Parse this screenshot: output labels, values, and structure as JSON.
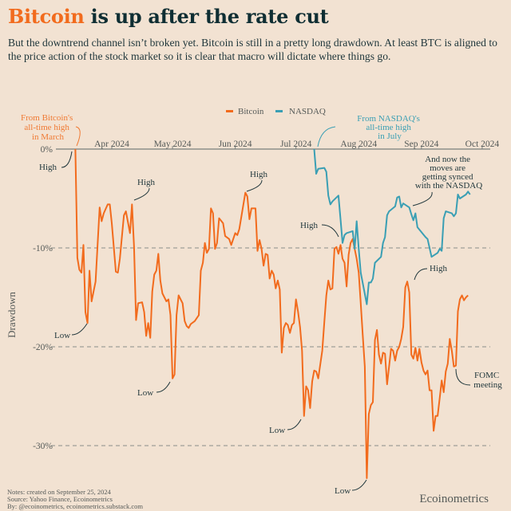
{
  "header": {
    "title_accent": "Bitcoin",
    "title_rest": " is up after the rate cut",
    "subtitle": "But the downtrend channel isn’t broken yet. Bitcoin is still in a pretty long drawdown. At least BTC is aligned to the price action of the stock market so it is clear that macro will dictate where things go."
  },
  "footer": {
    "notes": "Notes: created on September 25, 2024",
    "source": "Source: Yahoo Finance, Ecoinometrics",
    "by": "By: @ecoinometrics, ecoinometrics.substack.com",
    "brand": "Ecoinometrics"
  },
  "colors": {
    "background": "#f2e2d2",
    "bitcoin": "#f26b1d",
    "nasdaq": "#3a9fb4",
    "title": "#0f2e33"
  },
  "annotations": {
    "btc_ath": [
      "From Bitcoin's",
      "all-time high",
      "in March"
    ],
    "nasdaq_ath": [
      "From NASDAQ's",
      "all-time high",
      "in July"
    ],
    "synced": [
      "And now the",
      "moves are",
      "getting synced",
      "with the NASDAQ"
    ],
    "fomc": [
      "FOMC",
      "meeting"
    ],
    "high": "High",
    "low": "Low"
  },
  "chart_data": {
    "type": "line",
    "title": "",
    "xlabel": "",
    "ylabel": "Drawdown",
    "ylim": [
      -34,
      0
    ],
    "y_ticks": [
      {
        "value": 0,
        "label": "0%"
      },
      {
        "value": -10,
        "label": "-10%"
      },
      {
        "value": -20,
        "label": "-20%"
      },
      {
        "value": -30,
        "label": "-30%"
      }
    ],
    "x_ticks": [
      {
        "date": "2024-04-01",
        "label": "Apr 2024"
      },
      {
        "date": "2024-05-01",
        "label": "May 2024"
      },
      {
        "date": "2024-06-01",
        "label": "Jun 2024"
      },
      {
        "date": "2024-07-01",
        "label": "Jul 2024"
      },
      {
        "date": "2024-08-01",
        "label": "Aug 2024"
      },
      {
        "date": "2024-09-01",
        "label": "Sep 2024"
      },
      {
        "date": "2024-10-01",
        "label": "Oct 2024"
      }
    ],
    "grid": "dashed horizontal lines at -10%, -20%, -30%",
    "legend": "top-center",
    "series": [
      {
        "name": "Bitcoin",
        "color": "#f26b1d",
        "points": [
          [
            "2024-03-14",
            0.0
          ],
          [
            "2024-03-15",
            -11.0
          ],
          [
            "2024-03-16",
            -12.2
          ],
          [
            "2024-03-17",
            -12.5
          ],
          [
            "2024-03-18",
            -9.7
          ],
          [
            "2024-03-19",
            -16.5
          ],
          [
            "2024-03-20",
            -17.6
          ],
          [
            "2024-03-21",
            -12.3
          ],
          [
            "2024-03-22",
            -15.4
          ],
          [
            "2024-03-24",
            -13.4
          ],
          [
            "2024-03-26",
            -5.9
          ],
          [
            "2024-03-27",
            -7.3
          ],
          [
            "2024-03-28",
            -6.5
          ],
          [
            "2024-03-30",
            -5.6
          ],
          [
            "2024-03-31",
            -5.6
          ],
          [
            "2024-04-01",
            -7.5
          ],
          [
            "2024-04-03",
            -12.4
          ],
          [
            "2024-04-04",
            -12.5
          ],
          [
            "2024-04-05",
            -11.1
          ],
          [
            "2024-04-07",
            -6.7
          ],
          [
            "2024-04-08",
            -6.3
          ],
          [
            "2024-04-10",
            -8.5
          ],
          [
            "2024-04-11",
            -5.6
          ],
          [
            "2024-04-12",
            -9.9
          ],
          [
            "2024-04-13",
            -17.3
          ],
          [
            "2024-04-14",
            -15.6
          ],
          [
            "2024-04-16",
            -15.5
          ],
          [
            "2024-04-17",
            -16.5
          ],
          [
            "2024-04-18",
            -18.9
          ],
          [
            "2024-04-19",
            -17.6
          ],
          [
            "2024-04-20",
            -19.1
          ],
          [
            "2024-04-21",
            -14.4
          ],
          [
            "2024-04-22",
            -12.7
          ],
          [
            "2024-04-23",
            -12.3
          ],
          [
            "2024-04-24",
            -10.6
          ],
          [
            "2024-04-25",
            -13.3
          ],
          [
            "2024-04-26",
            -14.6
          ],
          [
            "2024-04-27",
            -15.0
          ],
          [
            "2024-04-28",
            -15.4
          ],
          [
            "2024-04-29",
            -15.2
          ],
          [
            "2024-04-30",
            -16.8
          ],
          [
            "2024-05-01",
            -23.2
          ],
          [
            "2024-05-02",
            -22.8
          ],
          [
            "2024-05-03",
            -16.8
          ],
          [
            "2024-05-04",
            -14.8
          ],
          [
            "2024-05-06",
            -15.6
          ],
          [
            "2024-05-07",
            -17.4
          ],
          [
            "2024-05-08",
            -17.9
          ],
          [
            "2024-05-09",
            -18.1
          ],
          [
            "2024-05-10",
            -17.7
          ],
          [
            "2024-05-12",
            -17.4
          ],
          [
            "2024-05-14",
            -16.8
          ],
          [
            "2024-05-15",
            -12.3
          ],
          [
            "2024-05-16",
            -11.5
          ],
          [
            "2024-05-17",
            -9.5
          ],
          [
            "2024-05-18",
            -10.5
          ],
          [
            "2024-05-19",
            -10.1
          ],
          [
            "2024-05-20",
            -6.0
          ],
          [
            "2024-05-21",
            -6.5
          ],
          [
            "2024-05-22",
            -10.1
          ],
          [
            "2024-05-23",
            -9.5
          ],
          [
            "2024-05-24",
            -7.0
          ],
          [
            "2024-05-26",
            -7.5
          ],
          [
            "2024-05-27",
            -8.8
          ],
          [
            "2024-05-29",
            -9.1
          ],
          [
            "2024-05-30",
            -9.7
          ],
          [
            "2024-06-01",
            -8.5
          ],
          [
            "2024-06-02",
            -8.7
          ],
          [
            "2024-06-03",
            -8.1
          ],
          [
            "2024-06-06",
            -4.4
          ],
          [
            "2024-06-07",
            -4.8
          ],
          [
            "2024-06-08",
            -7.1
          ],
          [
            "2024-06-09",
            -6.0
          ],
          [
            "2024-06-11",
            -6.0
          ],
          [
            "2024-06-12",
            -10.3
          ],
          [
            "2024-06-13",
            -9.2
          ],
          [
            "2024-06-14",
            -10.1
          ],
          [
            "2024-06-15",
            -11.8
          ],
          [
            "2024-06-16",
            -10.6
          ],
          [
            "2024-06-17",
            -10.7
          ],
          [
            "2024-06-18",
            -13.1
          ],
          [
            "2024-06-19",
            -12.3
          ],
          [
            "2024-06-20",
            -12.7
          ],
          [
            "2024-06-21",
            -14.1
          ],
          [
            "2024-06-22",
            -13.3
          ],
          [
            "2024-06-23",
            -14.2
          ],
          [
            "2024-06-24",
            -20.6
          ],
          [
            "2024-06-25",
            -18.1
          ],
          [
            "2024-06-26",
            -17.6
          ],
          [
            "2024-06-27",
            -17.8
          ],
          [
            "2024-06-28",
            -18.6
          ],
          [
            "2024-06-29",
            -17.8
          ],
          [
            "2024-06-30",
            -17.6
          ],
          [
            "2024-07-01",
            -15.2
          ],
          [
            "2024-07-02",
            -16.4
          ],
          [
            "2024-07-03",
            -18.0
          ],
          [
            "2024-07-04",
            -20.4
          ],
          [
            "2024-07-05",
            -27.0
          ],
          [
            "2024-07-06",
            -24.0
          ],
          [
            "2024-07-07",
            -24.4
          ],
          [
            "2024-07-08",
            -26.2
          ],
          [
            "2024-07-09",
            -23.5
          ],
          [
            "2024-07-10",
            -22.4
          ],
          [
            "2024-07-11",
            -22.5
          ],
          [
            "2024-07-12",
            -23.2
          ],
          [
            "2024-07-14",
            -20.4
          ],
          [
            "2024-07-15",
            -17.5
          ],
          [
            "2024-07-16",
            -14.8
          ],
          [
            "2024-07-17",
            -13.3
          ],
          [
            "2024-07-18",
            -14.2
          ],
          [
            "2024-07-19",
            -14.1
          ],
          [
            "2024-07-20",
            -10.1
          ],
          [
            "2024-07-21",
            -9.9
          ],
          [
            "2024-07-22",
            -10.6
          ],
          [
            "2024-07-23",
            -9.7
          ],
          [
            "2024-07-24",
            -11.1
          ],
          [
            "2024-07-25",
            -11.5
          ],
          [
            "2024-07-26",
            -13.9
          ],
          [
            "2024-07-27",
            -10.7
          ],
          [
            "2024-07-28",
            -9.5
          ],
          [
            "2024-07-29",
            -9.1
          ],
          [
            "2024-07-31",
            -11.1
          ],
          [
            "2024-08-01",
            -12.5
          ],
          [
            "2024-08-02",
            -15.6
          ],
          [
            "2024-08-03",
            -18.8
          ],
          [
            "2024-08-04",
            -22.0
          ],
          [
            "2024-08-05",
            -33.3
          ],
          [
            "2024-08-06",
            -26.8
          ],
          [
            "2024-08-07",
            -25.9
          ],
          [
            "2024-08-08",
            -25.6
          ],
          [
            "2024-08-09",
            -19.3
          ],
          [
            "2024-08-10",
            -18.3
          ],
          [
            "2024-08-11",
            -20.8
          ],
          [
            "2024-08-12",
            -21.7
          ],
          [
            "2024-08-13",
            -20.6
          ],
          [
            "2024-08-14",
            -20.7
          ],
          [
            "2024-08-15",
            -23.8
          ],
          [
            "2024-08-16",
            -22.0
          ],
          [
            "2024-08-17",
            -20.2
          ],
          [
            "2024-08-18",
            -20.4
          ],
          [
            "2024-08-19",
            -21.4
          ],
          [
            "2024-08-20",
            -20.4
          ],
          [
            "2024-08-21",
            -20.0
          ],
          [
            "2024-08-22",
            -19.2
          ],
          [
            "2024-08-23",
            -18.0
          ],
          [
            "2024-08-24",
            -14.0
          ],
          [
            "2024-08-25",
            -13.4
          ],
          [
            "2024-08-26",
            -14.5
          ],
          [
            "2024-08-27",
            -20.8
          ],
          [
            "2024-08-28",
            -21.2
          ],
          [
            "2024-08-29",
            -20.1
          ],
          [
            "2024-08-30",
            -21.4
          ],
          [
            "2024-08-31",
            -20.2
          ],
          [
            "2024-09-01",
            -21.6
          ],
          [
            "2024-09-02",
            -22.4
          ],
          [
            "2024-09-03",
            -22.8
          ],
          [
            "2024-09-04",
            -22.4
          ],
          [
            "2024-09-05",
            -24.4
          ],
          [
            "2024-09-06",
            -24.4
          ],
          [
            "2024-09-07",
            -28.5
          ],
          [
            "2024-09-08",
            -27.0
          ],
          [
            "2024-09-09",
            -27.0
          ],
          [
            "2024-09-10",
            -25.2
          ],
          [
            "2024-09-11",
            -23.4
          ],
          [
            "2024-09-12",
            -24.6
          ],
          [
            "2024-09-13",
            -22.5
          ],
          [
            "2024-09-14",
            -21.7
          ],
          [
            "2024-09-15",
            -19.2
          ],
          [
            "2024-09-16",
            -20.4
          ],
          [
            "2024-09-17",
            -22.0
          ],
          [
            "2024-09-18",
            -21.9
          ],
          [
            "2024-09-19",
            -16.4
          ],
          [
            "2024-09-20",
            -15.2
          ],
          [
            "2024-09-21",
            -14.8
          ],
          [
            "2024-09-22",
            -15.3
          ],
          [
            "2024-09-23",
            -15.0
          ],
          [
            "2024-09-24",
            -14.8
          ]
        ]
      },
      {
        "name": "NASDAQ",
        "color": "#3a9fb4",
        "points": [
          [
            "2024-07-10",
            0.0
          ],
          [
            "2024-07-11",
            -2.5
          ],
          [
            "2024-07-12",
            -2.0
          ],
          [
            "2024-07-15",
            -1.9
          ],
          [
            "2024-07-16",
            -2.3
          ],
          [
            "2024-07-17",
            -4.7
          ],
          [
            "2024-07-18",
            -5.6
          ],
          [
            "2024-07-19",
            -5.3
          ],
          [
            "2024-07-22",
            -4.7
          ],
          [
            "2024-07-23",
            -7.1
          ],
          [
            "2024-07-24",
            -9.5
          ],
          [
            "2024-07-25",
            -8.7
          ],
          [
            "2024-07-26",
            -8.5
          ],
          [
            "2024-07-29",
            -8.3
          ],
          [
            "2024-07-30",
            -10.1
          ],
          [
            "2024-07-31",
            -7.3
          ],
          [
            "2024-08-01",
            -10.1
          ],
          [
            "2024-08-02",
            -12.5
          ],
          [
            "2024-08-05",
            -15.7
          ],
          [
            "2024-08-06",
            -13.5
          ],
          [
            "2024-08-07",
            -13.5
          ],
          [
            "2024-08-08",
            -13.1
          ],
          [
            "2024-08-09",
            -11.5
          ],
          [
            "2024-08-12",
            -10.9
          ],
          [
            "2024-08-13",
            -9.5
          ],
          [
            "2024-08-14",
            -8.9
          ],
          [
            "2024-08-15",
            -6.7
          ],
          [
            "2024-08-16",
            -6.3
          ],
          [
            "2024-08-19",
            -5.8
          ],
          [
            "2024-08-20",
            -4.9
          ],
          [
            "2024-08-21",
            -4.8
          ],
          [
            "2024-08-22",
            -5.9
          ],
          [
            "2024-08-23",
            -5.5
          ],
          [
            "2024-08-26",
            -5.9
          ],
          [
            "2024-08-27",
            -6.6
          ],
          [
            "2024-08-28",
            -7.2
          ],
          [
            "2024-08-29",
            -6.5
          ],
          [
            "2024-08-30",
            -7.9
          ],
          [
            "2024-09-03",
            -8.9
          ],
          [
            "2024-09-04",
            -9.1
          ],
          [
            "2024-09-06",
            -10.9
          ],
          [
            "2024-09-09",
            -10.5
          ],
          [
            "2024-09-10",
            -10.1
          ],
          [
            "2024-09-11",
            -10.3
          ],
          [
            "2024-09-12",
            -7.0
          ],
          [
            "2024-09-13",
            -6.3
          ],
          [
            "2024-09-16",
            -6.5
          ],
          [
            "2024-09-17",
            -6.8
          ],
          [
            "2024-09-18",
            -6.5
          ],
          [
            "2024-09-19",
            -4.6
          ],
          [
            "2024-09-20",
            -5.0
          ],
          [
            "2024-09-23",
            -4.6
          ],
          [
            "2024-09-24",
            -4.3
          ],
          [
            "2024-09-25",
            -4.6
          ]
        ]
      }
    ]
  }
}
